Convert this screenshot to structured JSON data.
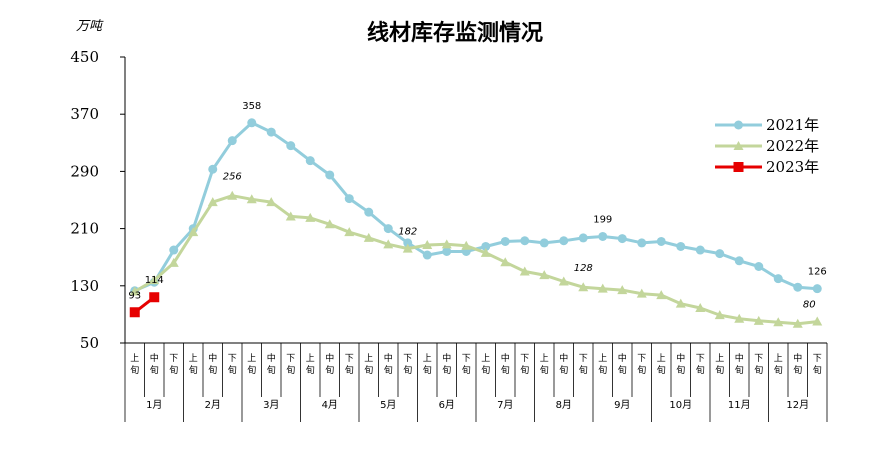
{
  "chart_data": {
    "type": "line",
    "title": "线材库存监测情况",
    "unit": "万吨",
    "ylim": [
      50,
      450
    ],
    "yticks": [
      50,
      130,
      210,
      290,
      370,
      450
    ],
    "sub_labels": [
      "上",
      "中",
      "下"
    ],
    "sub_suffix": "旬",
    "months": [
      "1月",
      "2月",
      "3月",
      "4月",
      "5月",
      "6月",
      "7月",
      "8月",
      "9月",
      "10月",
      "11月",
      "12月"
    ],
    "grid": false,
    "legend_position": "top-right",
    "series": [
      {
        "name": "2021年",
        "color": "#92CDDC",
        "marker": "circle",
        "values": [
          123,
          135,
          180,
          210,
          293,
          333,
          358,
          345,
          326,
          305,
          285,
          252,
          233,
          210,
          190,
          173,
          178,
          178,
          185,
          192,
          193,
          190,
          193,
          197,
          199,
          196,
          190,
          192,
          185,
          180,
          175,
          165,
          157,
          140,
          128,
          126
        ]
      },
      {
        "name": "2022年",
        "color": "#C3D69B",
        "marker": "triangle",
        "values": [
          122,
          138,
          162,
          205,
          247,
          256,
          251,
          247,
          227,
          225,
          216,
          205,
          197,
          188,
          182,
          187,
          188,
          186,
          176,
          163,
          150,
          145,
          136,
          128,
          126,
          124,
          119,
          117,
          105,
          99,
          89,
          84,
          81,
          79,
          77,
          80
        ]
      },
      {
        "name": "2023年",
        "color": "#E60000",
        "marker": "square",
        "values": [
          93,
          114
        ]
      }
    ],
    "data_labels": [
      {
        "series": 0,
        "index": 6,
        "text": "358",
        "italic": false
      },
      {
        "series": 1,
        "index": 5,
        "text": "256",
        "italic": true
      },
      {
        "series": 1,
        "index": 14,
        "text": "182",
        "italic": true
      },
      {
        "series": 0,
        "index": 24,
        "text": "199",
        "italic": false
      },
      {
        "series": 1,
        "index": 23,
        "text": "128",
        "italic": true
      },
      {
        "series": 0,
        "index": 35,
        "text": "126",
        "italic": false
      },
      {
        "series": 1,
        "index": 35,
        "text": "80",
        "italic": true
      },
      {
        "series": 2,
        "index": 0,
        "text": "93",
        "italic": false
      },
      {
        "series": 2,
        "index": 1,
        "text": "114",
        "italic": false
      }
    ]
  }
}
